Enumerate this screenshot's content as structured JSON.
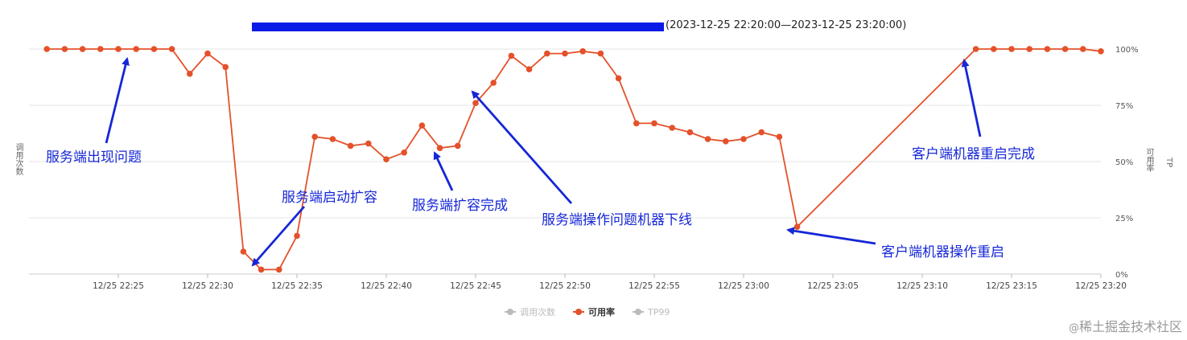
{
  "chart_data": {
    "type": "line",
    "title_suffix": "(2023-12-25 22:20:00—2023-12-25 23:20:00)",
    "x_ticks": [
      "12/25 22:25",
      "12/25 22:30",
      "12/25 22:35",
      "12/25 22:40",
      "12/25 22:45",
      "12/25 22:50",
      "12/25 22:55",
      "12/25 23:00",
      "12/25 23:05",
      "12/25 23:10",
      "12/25 23:15",
      "12/25 23:20"
    ],
    "y_right_ticks": [
      "0%",
      "25%",
      "50%",
      "75%",
      "100%"
    ],
    "y_left_label": "调用次数",
    "y_right_label": "可用率",
    "y_right_label2": "TP",
    "ylim": [
      0,
      100
    ],
    "grid": true,
    "legend_position": "bottom-center",
    "legend": [
      "调用次数",
      "可用率",
      "TP99"
    ],
    "active_series": "可用率",
    "series_color": "#e4512a",
    "series": [
      {
        "name": "可用率",
        "points": [
          [
            "22:21",
            100
          ],
          [
            "22:22",
            100
          ],
          [
            "22:23",
            100
          ],
          [
            "22:24",
            100
          ],
          [
            "22:25",
            100
          ],
          [
            "22:26",
            100
          ],
          [
            "22:27",
            100
          ],
          [
            "22:28",
            100
          ],
          [
            "22:29",
            89
          ],
          [
            "22:30",
            98
          ],
          [
            "22:31",
            92
          ],
          [
            "22:32",
            10
          ],
          [
            "22:33",
            2
          ],
          [
            "22:34",
            2
          ],
          [
            "22:35",
            17
          ],
          [
            "22:36",
            61
          ],
          [
            "22:37",
            60
          ],
          [
            "22:38",
            57
          ],
          [
            "22:39",
            58
          ],
          [
            "22:40",
            51
          ],
          [
            "22:41",
            54
          ],
          [
            "22:42",
            66
          ],
          [
            "22:43",
            56
          ],
          [
            "22:44",
            57
          ],
          [
            "22:45",
            76
          ],
          [
            "22:46",
            85
          ],
          [
            "22:47",
            97
          ],
          [
            "22:48",
            91
          ],
          [
            "22:49",
            98
          ],
          [
            "22:50",
            98
          ],
          [
            "22:51",
            99
          ],
          [
            "22:52",
            98
          ],
          [
            "22:53",
            87
          ],
          [
            "22:54",
            67
          ],
          [
            "22:55",
            67
          ],
          [
            "22:56",
            65
          ],
          [
            "22:57",
            63
          ],
          [
            "22:58",
            60
          ],
          [
            "22:59",
            59
          ],
          [
            "23:00",
            60
          ],
          [
            "23:01",
            63
          ],
          [
            "23:02",
            61
          ],
          [
            "23:03",
            21
          ],
          [
            "23:13",
            100
          ],
          [
            "23:14",
            100
          ],
          [
            "23:15",
            100
          ],
          [
            "23:16",
            100
          ],
          [
            "23:17",
            100
          ],
          [
            "23:18",
            100
          ],
          [
            "23:19",
            100
          ],
          [
            "23:20",
            99
          ]
        ]
      }
    ],
    "annotations": [
      "服务端出现问题",
      "服务端启动扩容",
      "服务端扩容完成",
      "服务端操作问题机器下线",
      "客户端机器操作重启",
      "客户端机器重启完成"
    ]
  },
  "footer": {
    "at": "@",
    "text": "稀土掘金技术社区"
  }
}
